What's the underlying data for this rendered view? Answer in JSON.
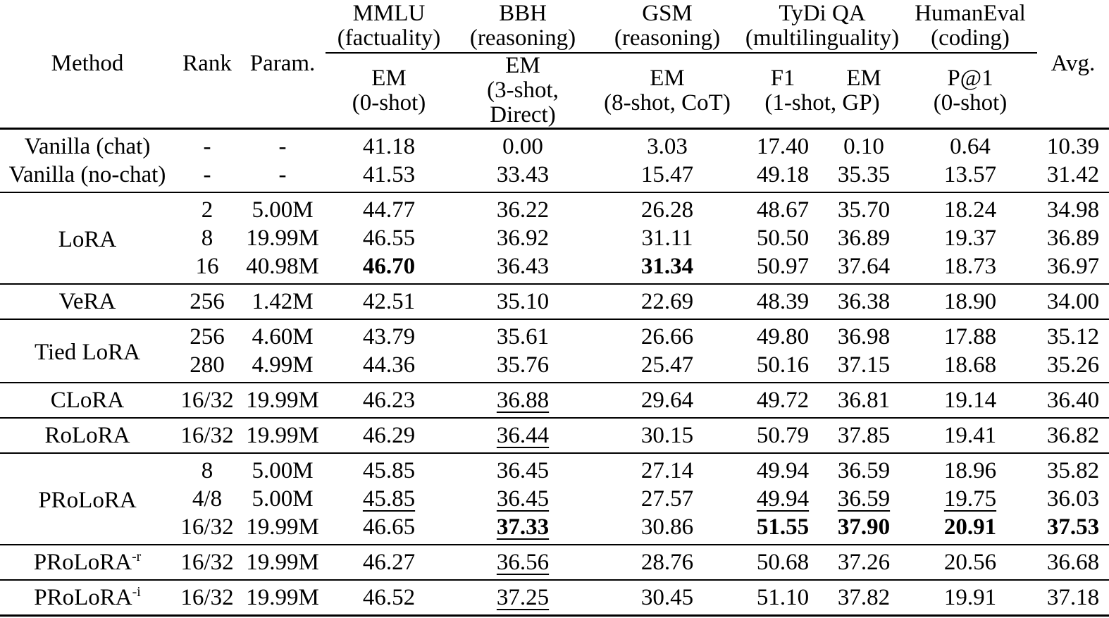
{
  "colors": {
    "text": "#000000",
    "background": "#ffffff",
    "rule": "#000000"
  },
  "header": {
    "method": "Method",
    "rank": "Rank",
    "param": "Param.",
    "avg": "Avg.",
    "groups": [
      {
        "name": "MMLU",
        "subtitle": "(factuality)",
        "metric": "EM",
        "shots": "(0-shot)"
      },
      {
        "name": "BBH",
        "subtitle": "(reasoning)",
        "metric": "EM",
        "shots": "(3-shot, Direct)"
      },
      {
        "name": "GSM",
        "subtitle": "(reasoning)",
        "metric": "EM",
        "shots": "(8-shot, CoT)"
      },
      {
        "name": "TyDi QA",
        "subtitle": "(multilinguality)",
        "metric_f1": "F1",
        "metric_em": "EM",
        "shots": "(1-shot, GP)"
      },
      {
        "name": "HumanEval",
        "subtitle": "(coding)",
        "metric": "P@1",
        "shots": "(0-shot)"
      }
    ],
    "value_columns": [
      "mmlu-em",
      "bbh-em",
      "gsm-em",
      "tydiqa-f1",
      "tydiqa-em",
      "humaneval-p1",
      "avg"
    ]
  },
  "sections": [
    {
      "id": "vanilla",
      "rows": [
        {
          "method": "Vanilla (chat)",
          "rank": "-",
          "param": "-",
          "values": [
            "41.18",
            "0.00",
            "3.03",
            "17.40",
            "0.10",
            "0.64",
            "10.39"
          ],
          "flags": [
            "",
            "",
            "",
            "",
            "",
            "",
            ""
          ]
        },
        {
          "method": "Vanilla (no-chat)",
          "rank": "-",
          "param": "-",
          "values": [
            "41.53",
            "33.43",
            "15.47",
            "49.18",
            "35.35",
            "13.57",
            "31.42"
          ],
          "flags": [
            "",
            "",
            "",
            "",
            "",
            "",
            ""
          ]
        }
      ]
    },
    {
      "id": "lora",
      "method": "LoRA",
      "rows": [
        {
          "rank": "2",
          "param": "5.00M",
          "values": [
            "44.77",
            "36.22",
            "26.28",
            "48.67",
            "35.70",
            "18.24",
            "34.98"
          ],
          "flags": [
            "",
            "",
            "",
            "",
            "",
            "",
            ""
          ]
        },
        {
          "rank": "8",
          "param": "19.99M",
          "values": [
            "46.55",
            "36.92",
            "31.11",
            "50.50",
            "36.89",
            "19.37",
            "36.89"
          ],
          "flags": [
            "",
            "",
            "",
            "",
            "",
            "",
            ""
          ]
        },
        {
          "rank": "16",
          "param": "40.98M",
          "values": [
            "46.70",
            "36.43",
            "31.34",
            "50.97",
            "37.64",
            "18.73",
            "36.97"
          ],
          "flags": [
            "b",
            "",
            "b",
            "",
            "",
            "",
            ""
          ]
        }
      ]
    },
    {
      "id": "vera",
      "method": "VeRA",
      "rows": [
        {
          "rank": "256",
          "param": "1.42M",
          "values": [
            "42.51",
            "35.10",
            "22.69",
            "48.39",
            "36.38",
            "18.90",
            "34.00"
          ],
          "flags": [
            "",
            "",
            "",
            "",
            "",
            "",
            ""
          ]
        }
      ]
    },
    {
      "id": "tied-lora",
      "method": "Tied LoRA",
      "rows": [
        {
          "rank": "256",
          "param": "4.60M",
          "values": [
            "43.79",
            "35.61",
            "26.66",
            "49.80",
            "36.98",
            "17.88",
            "35.12"
          ],
          "flags": [
            "",
            "",
            "",
            "",
            "",
            "",
            ""
          ]
        },
        {
          "rank": "280",
          "param": "4.99M",
          "values": [
            "44.36",
            "35.76",
            "25.47",
            "50.16",
            "37.15",
            "18.68",
            "35.26"
          ],
          "flags": [
            "",
            "",
            "",
            "",
            "",
            "",
            ""
          ]
        }
      ]
    },
    {
      "id": "clora",
      "method": "CLoRA",
      "rows": [
        {
          "rank": "16/32",
          "param": "19.99M",
          "values": [
            "46.23",
            "36.88",
            "29.64",
            "49.72",
            "36.81",
            "19.14",
            "36.40"
          ],
          "flags": [
            "",
            "u",
            "",
            "",
            "",
            "",
            ""
          ]
        }
      ]
    },
    {
      "id": "rolora",
      "method": "RoLoRA",
      "rows": [
        {
          "rank": "16/32",
          "param": "19.99M",
          "values": [
            "46.29",
            "36.44",
            "30.15",
            "50.79",
            "37.85",
            "19.41",
            "36.82"
          ],
          "flags": [
            "",
            "u",
            "",
            "",
            "",
            "",
            ""
          ]
        }
      ]
    },
    {
      "id": "prolora",
      "method": "PRoLoRA",
      "rows": [
        {
          "rank": "8",
          "param": "5.00M",
          "values": [
            "45.85",
            "36.45",
            "27.14",
            "49.94",
            "36.59",
            "18.96",
            "35.82"
          ],
          "flags": [
            "",
            "",
            "",
            "",
            "",
            "",
            ""
          ]
        },
        {
          "rank": "4/8",
          "param": "5.00M",
          "values": [
            "45.85",
            "36.45",
            "27.57",
            "49.94",
            "36.59",
            "19.75",
            "36.03"
          ],
          "flags": [
            "u",
            "u",
            "",
            "u",
            "u",
            "u",
            ""
          ]
        },
        {
          "rank": "16/32",
          "param": "19.99M",
          "values": [
            "46.65",
            "37.33",
            "30.86",
            "51.55",
            "37.90",
            "20.91",
            "37.53"
          ],
          "flags": [
            "",
            "bu",
            "",
            "b",
            "b",
            "b",
            "b"
          ]
        }
      ]
    },
    {
      "id": "prolora-r",
      "method": "PRoLoRA",
      "method_sup": "-r",
      "rows": [
        {
          "rank": "16/32",
          "param": "19.99M",
          "values": [
            "46.27",
            "36.56",
            "28.76",
            "50.68",
            "37.26",
            "20.56",
            "36.68"
          ],
          "flags": [
            "",
            "u",
            "",
            "",
            "",
            "",
            ""
          ]
        }
      ]
    },
    {
      "id": "prolora-i",
      "method": "PRoLoRA",
      "method_sup": "-i",
      "rows": [
        {
          "rank": "16/32",
          "param": "19.99M",
          "values": [
            "46.52",
            "37.25",
            "30.45",
            "51.10",
            "37.82",
            "19.91",
            "37.18"
          ],
          "flags": [
            "",
            "u",
            "",
            "",
            "",
            "",
            ""
          ]
        }
      ]
    }
  ]
}
